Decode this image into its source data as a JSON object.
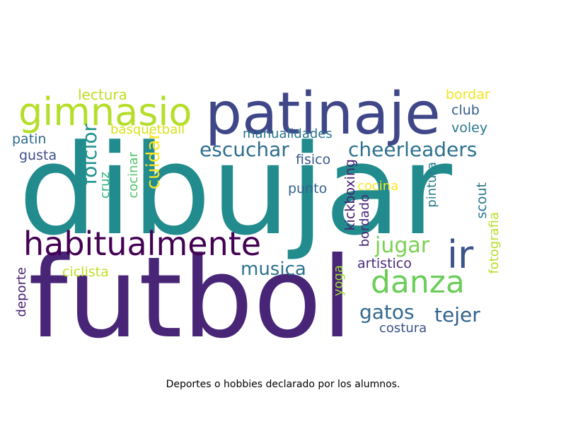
{
  "caption": "Deportes o hobbies declarado por los alumnos.",
  "words": [
    {
      "text": "dibujar",
      "color": "#228b8d",
      "vertical": false
    },
    {
      "text": "futbol",
      "color": "#482576",
      "vertical": false
    },
    {
      "text": "patinaje",
      "color": "#3f4788",
      "vertical": false
    },
    {
      "text": "gimnasio",
      "color": "#b5de2b",
      "vertical": false
    },
    {
      "text": "habitualmente",
      "color": "#440154",
      "vertical": false
    },
    {
      "text": "ir",
      "color": "#3b528b",
      "vertical": false
    },
    {
      "text": "danza",
      "color": "#6ccd5a",
      "vertical": false
    },
    {
      "text": "escuchar",
      "color": "#2e6e8e",
      "vertical": false
    },
    {
      "text": "cheerleaders",
      "color": "#2d718e",
      "vertical": false
    },
    {
      "text": "musica",
      "color": "#2c728e",
      "vertical": false
    },
    {
      "text": "jugar",
      "color": "#7ad151",
      "vertical": false
    },
    {
      "text": "gatos",
      "color": "#31688e",
      "vertical": false
    },
    {
      "text": "tejer",
      "color": "#33638d",
      "vertical": false
    },
    {
      "text": "folclor",
      "color": "#20928c",
      "vertical": true
    },
    {
      "text": "cuidar",
      "color": "#fde725",
      "vertical": true
    },
    {
      "text": "manualidades",
      "color": "#2c738e",
      "vertical": false
    },
    {
      "text": "lectura",
      "color": "#c0df25",
      "vertical": false
    },
    {
      "text": "basquetball",
      "color": "#d8e219",
      "vertical": false
    },
    {
      "text": "bordar",
      "color": "#f1e51d",
      "vertical": false
    },
    {
      "text": "club",
      "color": "#35608d",
      "vertical": false
    },
    {
      "text": "voley",
      "color": "#2a768e",
      "vertical": false
    },
    {
      "text": "patin",
      "color": "#2f6b8e",
      "vertical": false
    },
    {
      "text": "gusta",
      "color": "#3d4e8a",
      "vertical": false
    },
    {
      "text": "fisico",
      "color": "#38588c",
      "vertical": false
    },
    {
      "text": "punto",
      "color": "#33638d",
      "vertical": false
    },
    {
      "text": "cocina",
      "color": "#fde725",
      "vertical": false
    },
    {
      "text": "cruz",
      "color": "#2fb47c",
      "vertical": true
    },
    {
      "text": "cocinar",
      "color": "#52c569",
      "vertical": true
    },
    {
      "text": "kickboxing",
      "color": "#481f70",
      "vertical": true
    },
    {
      "text": "bordado",
      "color": "#482878",
      "vertical": true
    },
    {
      "text": "pintura",
      "color": "#287c8e",
      "vertical": true
    },
    {
      "text": "scout",
      "color": "#2a788e",
      "vertical": true
    },
    {
      "text": "fotografia",
      "color": "#b5de2b",
      "vertical": true
    },
    {
      "text": "artistico",
      "color": "#472d7b",
      "vertical": false
    },
    {
      "text": "ciclista",
      "color": "#c2df23",
      "vertical": false
    },
    {
      "text": "yoga",
      "color": "#9fda3a",
      "vertical": true
    },
    {
      "text": "deporte",
      "color": "#482173",
      "vertical": true
    },
    {
      "text": "costura",
      "color": "#3b528b",
      "vertical": false
    }
  ]
}
